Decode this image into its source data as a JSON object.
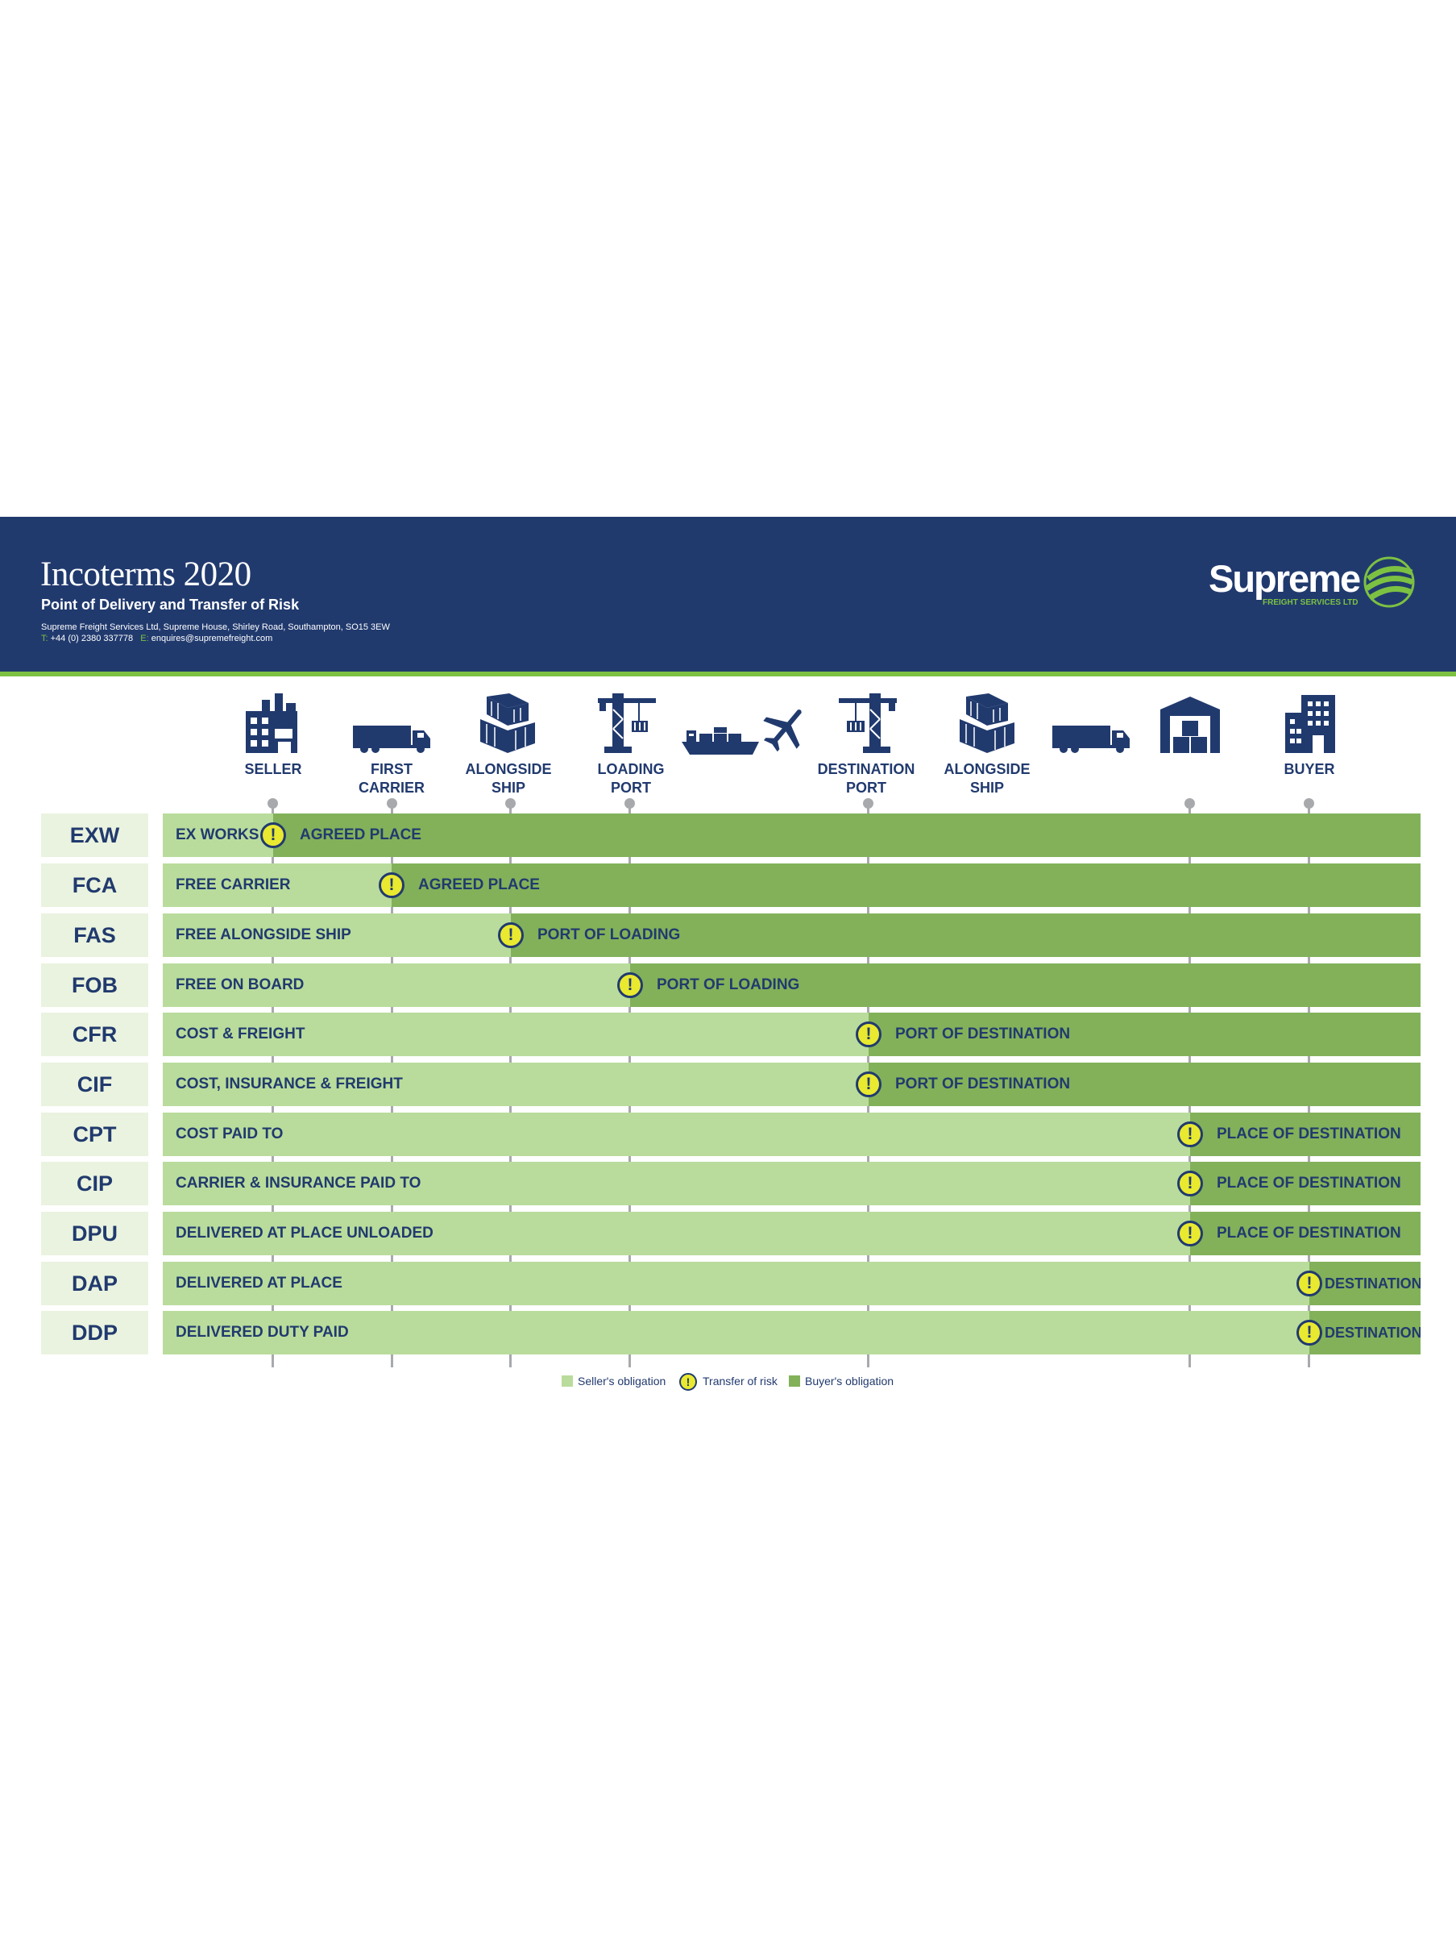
{
  "header": {
    "title": "Incoterms 2020",
    "subtitle": "Point of Delivery and Transfer of Risk",
    "address": "Supreme Freight Services Ltd, Supreme House, Shirley Road, Southampton, SO15 3EW",
    "phone_key": "T:",
    "phone": "+44 (0) 2380 337778",
    "email_key": "E:",
    "email": "enquires@supremefreight.com",
    "logo_word": "Supreme",
    "logo_tag": "FREIGHT SERVICES LTD"
  },
  "colors": {
    "navy": "#213a6e",
    "accent_green": "#7cc142",
    "seller_obligation": "#b9dc9c",
    "buyer_obligation": "#82b15a",
    "risk": "#e9e930"
  },
  "nodes": {
    "seller": "SELLER",
    "first_carrier": "FIRST\nCARRIER",
    "alongside_ship_1": "ALONGSIDE\nSHIP",
    "loading_port": "LOADING\nPORT",
    "destination_port": "DESTINATION\nPORT",
    "alongside_ship_2": "ALONGSIDE\nSHIP",
    "buyer": "BUYER"
  },
  "icons": [
    "factory-icon",
    "truck-icon",
    "containers-icon",
    "crane-icon",
    "ship-icon",
    "airplane-icon",
    "crane-icon",
    "containers-icon",
    "truck-icon",
    "warehouse-icon",
    "office-building-icon"
  ],
  "terms": [
    {
      "code": "EXW",
      "seller": "EX WORKS",
      "risk_point": "seller",
      "buyer": "AGREED PLACE"
    },
    {
      "code": "FCA",
      "seller": "FREE CARRIER",
      "risk_point": "first_carrier",
      "buyer": "AGREED PLACE"
    },
    {
      "code": "FAS",
      "seller": "FREE ALONGSIDE SHIP",
      "risk_point": "alongside_ship_1",
      "buyer": "PORT OF LOADING"
    },
    {
      "code": "FOB",
      "seller": "FREE ON BOARD",
      "risk_point": "loading_port",
      "buyer": "PORT OF LOADING"
    },
    {
      "code": "CFR",
      "seller": "COST & FREIGHT",
      "risk_point": "destination_port",
      "buyer": "PORT OF DESTINATION"
    },
    {
      "code": "CIF",
      "seller": "COST, INSURANCE & FREIGHT",
      "risk_point": "destination_port",
      "buyer": "PORT OF DESTINATION"
    },
    {
      "code": "CPT",
      "seller": "COST PAID TO",
      "risk_point": "place_of_destination",
      "buyer": "PLACE OF DESTINATION"
    },
    {
      "code": "CIP",
      "seller": "CARRIER & INSURANCE PAID TO",
      "risk_point": "place_of_destination",
      "buyer": "PLACE OF DESTINATION"
    },
    {
      "code": "DPU",
      "seller": "DELIVERED AT PLACE UNLOADED",
      "risk_point": "place_of_destination",
      "buyer": "PLACE OF DESTINATION"
    },
    {
      "code": "DAP",
      "seller": "DELIVERED AT PLACE",
      "risk_point": "buyer",
      "buyer": "DESTINATION"
    },
    {
      "code": "DDP",
      "seller": "DELIVERED DUTY PAID",
      "risk_point": "buyer",
      "buyer": "DESTINATION"
    }
  ],
  "risk_symbol": "!",
  "legend": {
    "seller": "Seller's obligation",
    "risk": "Transfer of risk",
    "buyer": "Buyer's obligation"
  }
}
